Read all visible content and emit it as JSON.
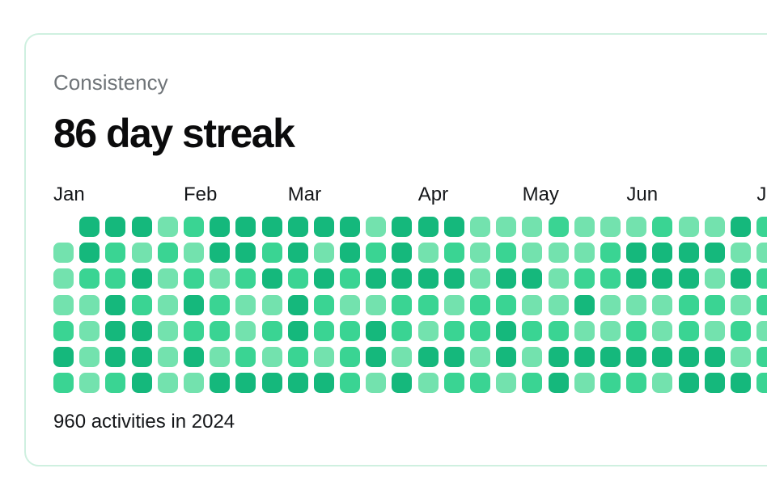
{
  "card": {
    "subtitle": "Consistency",
    "title": "86 day streak",
    "footer": "960 activities in 2024"
  },
  "chart_data": {
    "type": "heatmap",
    "title": "Consistency",
    "streak_label": "86 day streak",
    "total_label": "960 activities in 2024",
    "year": "2024",
    "total_activities": 960,
    "streak_days": 86,
    "layout": {
      "columns_are_weeks": true,
      "rows_per_column": 7,
      "visible_columns": 28,
      "last_column_clipped": true,
      "legend_position": "none",
      "grid_lines": false
    },
    "months": [
      {
        "label": "Jan",
        "week": 0
      },
      {
        "label": "Feb",
        "week": 5
      },
      {
        "label": "Mar",
        "week": 9
      },
      {
        "label": "Apr",
        "week": 14
      },
      {
        "label": "May",
        "week": 18
      },
      {
        "label": "Jun",
        "week": 22
      },
      {
        "label": "Jul",
        "week": 27
      }
    ],
    "level_meaning": {
      "0": "no-cell",
      "1": "light-activity",
      "2": "medium-activity",
      "3": "high-activity"
    },
    "weeks": [
      "0111232",
      "3321111",
      "3223332",
      "3132333",
      "1211111",
      "2123231",
      "3312213",
      "3321123",
      "3231213",
      "3323323",
      "3132213",
      "3321222",
      "1231331",
      "3332213",
      "3132131",
      "3231232",
      "1112212",
      "1232331",
      "1131212",
      "2111233",
      "1123131",
      "1221132",
      "1331232",
      "2331131",
      "1332233",
      "1312133",
      "3131213",
      "2122122"
    ],
    "colors": {
      "cell_light": "#73e2ae",
      "cell_medium": "#3ad493",
      "cell_dark": "#15b87c",
      "card_border": "#cff0e0"
    }
  }
}
